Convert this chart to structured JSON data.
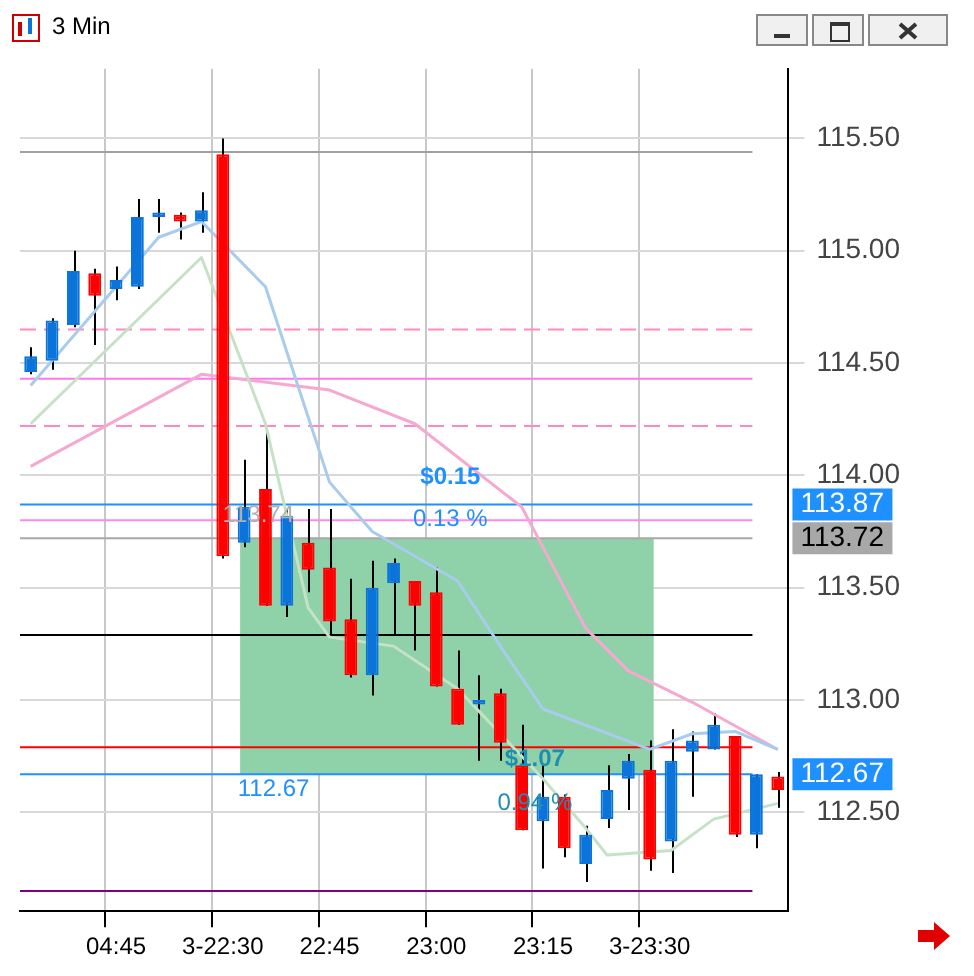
{
  "chart_data": {
    "type": "candlestick",
    "title": "3 Min",
    "categories": [
      null,
      null,
      null,
      null,
      "04:45",
      null,
      null,
      null,
      null,
      "3-22:30",
      null,
      null,
      null,
      null,
      "22:45",
      null,
      null,
      null,
      null,
      "23:00",
      null,
      null,
      null,
      null,
      "23:15",
      null,
      null,
      null,
      null,
      "3-23:30",
      null,
      null,
      null,
      null,
      null,
      null
    ],
    "ohlc": [
      [
        114.46,
        114.57,
        114.45,
        114.53
      ],
      [
        114.51,
        114.7,
        114.47,
        114.69
      ],
      [
        114.67,
        115.0,
        114.66,
        114.91
      ],
      [
        114.9,
        114.92,
        114.58,
        114.8
      ],
      [
        114.83,
        114.93,
        114.78,
        114.87
      ],
      [
        114.84,
        115.23,
        114.83,
        115.15
      ],
      [
        115.15,
        115.23,
        115.08,
        115.17
      ],
      [
        115.16,
        115.17,
        115.05,
        115.13
      ],
      [
        115.13,
        115.26,
        115.08,
        115.18
      ],
      [
        115.43,
        115.5,
        113.63,
        113.64
      ],
      [
        113.7,
        114.07,
        113.68,
        113.86
      ],
      [
        113.94,
        114.21,
        113.42,
        113.42
      ],
      [
        113.42,
        113.85,
        113.37,
        113.82
      ],
      [
        113.7,
        113.85,
        113.48,
        113.58
      ],
      [
        113.59,
        113.85,
        113.29,
        113.35
      ],
      [
        113.36,
        113.54,
        113.1,
        113.11
      ],
      [
        113.11,
        113.62,
        113.02,
        113.5
      ],
      [
        113.52,
        113.63,
        113.29,
        113.61
      ],
      [
        113.53,
        113.53,
        113.22,
        113.42
      ],
      [
        113.48,
        113.59,
        113.06,
        113.06
      ],
      [
        113.05,
        113.22,
        112.89,
        112.89
      ],
      [
        112.98,
        113.11,
        112.73,
        113.0
      ],
      [
        113.03,
        113.05,
        112.73,
        112.81
      ],
      [
        112.71,
        112.89,
        112.42,
        112.42
      ],
      [
        112.46,
        112.71,
        112.25,
        112.57
      ],
      [
        112.57,
        112.58,
        112.3,
        112.34
      ],
      [
        112.27,
        112.44,
        112.19,
        112.4
      ],
      [
        112.47,
        112.71,
        112.43,
        112.6
      ],
      [
        112.65,
        112.76,
        112.51,
        112.73
      ],
      [
        112.69,
        112.82,
        112.24,
        112.29
      ],
      [
        112.37,
        112.87,
        112.23,
        112.73
      ],
      [
        112.77,
        112.86,
        112.57,
        112.82
      ],
      [
        112.78,
        112.94,
        112.78,
        112.89
      ],
      [
        112.84,
        112.84,
        112.39,
        112.4
      ],
      [
        112.4,
        112.67,
        112.34,
        112.67
      ],
      [
        112.66,
        112.68,
        112.52,
        112.6
      ]
    ],
    "colors": [
      "#0a74da",
      "#0a74da",
      "#0a74da",
      "#ff0000",
      "#0a74da",
      "#0a74da",
      "#0a74da",
      "#ff0000",
      "#0a74da",
      "#ff0000",
      "#0a74da",
      "#ff0000",
      "#0a74da",
      "#ff0000",
      "#ff0000",
      "#ff0000",
      "#0a74da",
      "#0a74da",
      "#ff0000",
      "#ff0000",
      "#ff0000",
      "#0a74da",
      "#ff0000",
      "#ff0000",
      "#0a74da",
      "#ff0000",
      "#0a74da",
      "#0a74da",
      "#0a74da",
      "#ff0000",
      "#0a74da",
      "#0a74da",
      "#0a74da",
      "#ff0000",
      "#0a74da",
      "#ff0000"
    ],
    "series": [
      {
        "type": "line",
        "color": "#a8cbee",
        "values": [
          114.4,
          null,
          null,
          null,
          null,
          null,
          115.06,
          null,
          115.13,
          null,
          null,
          114.84,
          null,
          null,
          113.97,
          null,
          113.75,
          null,
          null,
          null,
          113.53,
          null,
          113.24,
          null,
          112.96,
          null,
          null,
          null,
          null,
          112.78,
          null,
          112.85,
          null,
          112.86,
          null,
          112.78
        ]
      },
      {
        "type": "line",
        "color": "#c6e2c6",
        "values": [
          114.23,
          null,
          null,
          null,
          null,
          null,
          null,
          null,
          114.97,
          null,
          null,
          114.23,
          null,
          113.41,
          113.28,
          null,
          null,
          113.24,
          null,
          null,
          113.05,
          null,
          null,
          null,
          112.65,
          null,
          112.43,
          112.31,
          null,
          null,
          112.33,
          null,
          112.47,
          null,
          null,
          112.54
        ]
      },
      {
        "type": "line",
        "color": "#f7a8d0",
        "values": [
          114.04,
          null,
          null,
          null,
          null,
          null,
          null,
          null,
          114.45,
          null,
          null,
          null,
          null,
          null,
          114.38,
          null,
          null,
          null,
          114.23,
          null,
          null,
          null,
          null,
          113.86,
          null,
          null,
          113.32,
          null,
          113.13,
          null,
          null,
          112.99,
          null,
          null,
          null,
          112.78
        ]
      }
    ],
    "ylim": [
      112.06,
      115.81
    ],
    "yticks": [
      {
        "value": 112.5,
        "label": "112.50"
      },
      {
        "value": 113,
        "label": "113.00"
      },
      {
        "value": 113.5,
        "label": "113.50"
      },
      {
        "value": 114,
        "label": "114.00"
      },
      {
        "value": 114.5,
        "label": "114.50"
      },
      {
        "value": 115,
        "label": "115.00"
      },
      {
        "value": 115.5,
        "label": "115.50"
      }
    ],
    "grid": true,
    "ref_lines": [
      {
        "axis": "y",
        "value": 115.44,
        "label": null,
        "color": "#a0a0a0",
        "line_style": "solid"
      },
      {
        "axis": "y",
        "value": 114.65,
        "label": null,
        "color": "#ff88c8",
        "line_style": "dashed"
      },
      {
        "axis": "y",
        "value": 114.43,
        "label": null,
        "color": "#ff77ee",
        "line_style": "solid"
      },
      {
        "axis": "y",
        "value": 114.22,
        "label": null,
        "color": "#ff88c8",
        "line_style": "dashed"
      },
      {
        "axis": "y",
        "value": 113.8,
        "label": null,
        "color": "#ff88ee",
        "line_style": "solid"
      },
      {
        "axis": "y",
        "value": 113.87,
        "label": "113.87",
        "color": "#1e90ff",
        "line_style": "solid"
      },
      {
        "axis": "y",
        "value": 113.72,
        "label": "113.72",
        "color": "#a8a8a8",
        "line_style": "solid"
      },
      {
        "axis": "y",
        "value": 112.67,
        "label": "112.67",
        "color": "#1e90ff",
        "line_style": "solid"
      },
      {
        "axis": "y",
        "value": 113.29,
        "label": null,
        "color": "#000000",
        "line_style": "solid"
      },
      {
        "axis": "y",
        "value": 112.79,
        "label": null,
        "color": "#ff0000",
        "line_style": "solid"
      },
      {
        "axis": "y",
        "value": 112.15,
        "label": null,
        "color": "#800080",
        "line_style": "solid"
      }
    ],
    "bands": [
      {
        "axis": "y",
        "from": 112.67,
        "to": 113.72,
        "label": null,
        "color": "#8fd1a8"
      }
    ],
    "annotations": [
      "$0.15",
      "0.13 %",
      "$1.07",
      "0.94 %",
      "112.67",
      "113.74"
    ]
  }
}
